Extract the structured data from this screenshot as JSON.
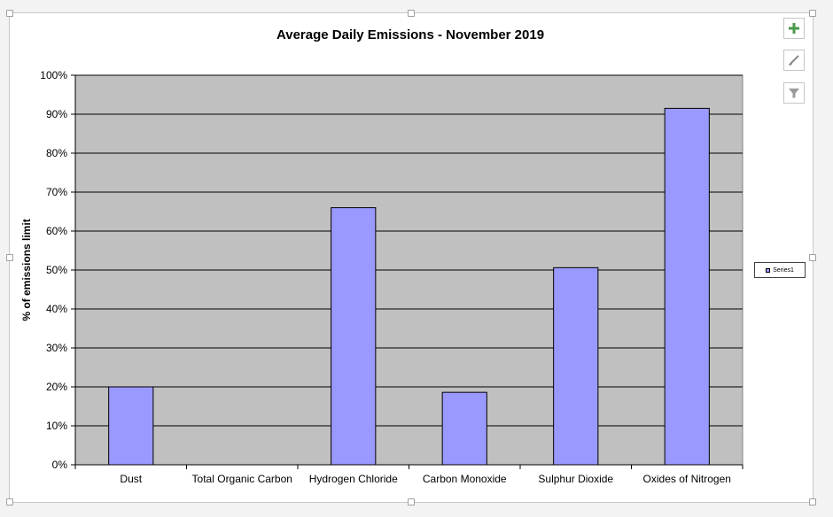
{
  "chart_data": {
    "type": "bar",
    "title": "Average Daily Emissions - November 2019",
    "xlabel": "",
    "ylabel": "% of emissions limit",
    "categories": [
      "Dust",
      "Total Organic Carbon",
      "Hydrogen Chloride",
      "Carbon Monoxide",
      "Sulphur Dioxide",
      "Oxides of Nitrogen"
    ],
    "series": [
      {
        "name": "Series1",
        "values": [
          20,
          0,
          66,
          18.6,
          50.6,
          91.5
        ],
        "color": "#9999ff"
      }
    ],
    "ylim": [
      0,
      100
    ],
    "yticks": [
      "0%",
      "10%",
      "20%",
      "30%",
      "40%",
      "50%",
      "60%",
      "70%",
      "80%",
      "90%",
      "100%"
    ],
    "grid": true,
    "plot_background": "#c0c0c0",
    "legend_position": "right"
  },
  "toolbar": {
    "buttons": [
      {
        "name": "chart-elements-button",
        "icon": "plus-icon"
      },
      {
        "name": "chart-styles-button",
        "icon": "paintbrush-icon"
      },
      {
        "name": "chart-filters-button",
        "icon": "filter-icon"
      }
    ]
  }
}
